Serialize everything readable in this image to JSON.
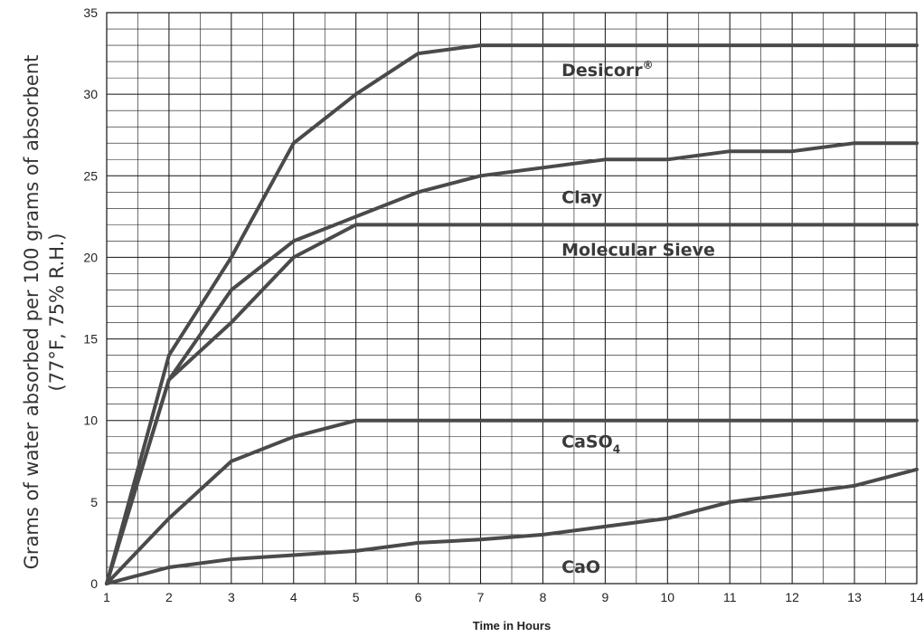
{
  "chart_data": {
    "type": "line",
    "title": "",
    "xlabel": "Time in Hours",
    "ylabel_line1": "Grams of water absorbed per 100 grams of absorbent",
    "ylabel_line2": "(77°F, 75% R.H.)",
    "xlim": [
      1,
      14
    ],
    "ylim": [
      0,
      35
    ],
    "x_ticks": [
      1,
      2,
      3,
      4,
      5,
      6,
      7,
      8,
      9,
      10,
      11,
      12,
      13,
      14
    ],
    "y_ticks": [
      0,
      5,
      10,
      15,
      20,
      25,
      30,
      35
    ],
    "grid": true,
    "line_color": "#4a4a4a",
    "series": [
      {
        "name": "Desicorr",
        "name_mark": "®",
        "points": [
          [
            1,
            0
          ],
          [
            2,
            14
          ],
          [
            3,
            20
          ],
          [
            4,
            27
          ],
          [
            5,
            30
          ],
          [
            6,
            32.5
          ],
          [
            7,
            33
          ],
          [
            14,
            33
          ]
        ]
      },
      {
        "name": "Clay",
        "points": [
          [
            1,
            0
          ],
          [
            2,
            12.5
          ],
          [
            3,
            18
          ],
          [
            4,
            21
          ],
          [
            5,
            22.5
          ],
          [
            6,
            24
          ],
          [
            7,
            25
          ],
          [
            8,
            25.5
          ],
          [
            9,
            26
          ],
          [
            10,
            26
          ],
          [
            11,
            26.5
          ],
          [
            12,
            26.5
          ],
          [
            13,
            27
          ],
          [
            14,
            27
          ]
        ]
      },
      {
        "name": "Molecular Sieve",
        "points": [
          [
            1,
            0
          ],
          [
            2,
            12.5
          ],
          [
            3,
            16
          ],
          [
            4,
            20
          ],
          [
            5,
            22
          ],
          [
            14,
            22
          ]
        ]
      },
      {
        "name": "CaSO",
        "name_sub": "4",
        "points": [
          [
            1,
            0
          ],
          [
            2,
            4
          ],
          [
            3,
            7.5
          ],
          [
            4,
            9
          ],
          [
            5,
            10
          ],
          [
            14,
            10
          ]
        ]
      },
      {
        "name": "CaO",
        "points": [
          [
            1,
            0
          ],
          [
            2,
            1
          ],
          [
            3,
            1.5
          ],
          [
            4,
            1.75
          ],
          [
            5,
            2
          ],
          [
            6,
            2.5
          ],
          [
            7,
            2.7
          ],
          [
            8,
            3
          ],
          [
            9,
            3.5
          ],
          [
            10,
            4
          ],
          [
            11,
            5
          ],
          [
            12,
            5.5
          ],
          [
            13,
            6
          ],
          [
            14,
            7
          ]
        ]
      }
    ],
    "annotations": [
      {
        "series": "Desicorr",
        "x": 8.3,
        "y": 33
      },
      {
        "series": "Clay",
        "x": 8.3,
        "y": 25
      },
      {
        "series": "Molecular Sieve",
        "x": 8.3,
        "y": 22
      },
      {
        "series": "CaSO",
        "x": 8.3,
        "y": 10
      },
      {
        "series": "CaO",
        "x": 8.3,
        "y": 2
      }
    ]
  }
}
